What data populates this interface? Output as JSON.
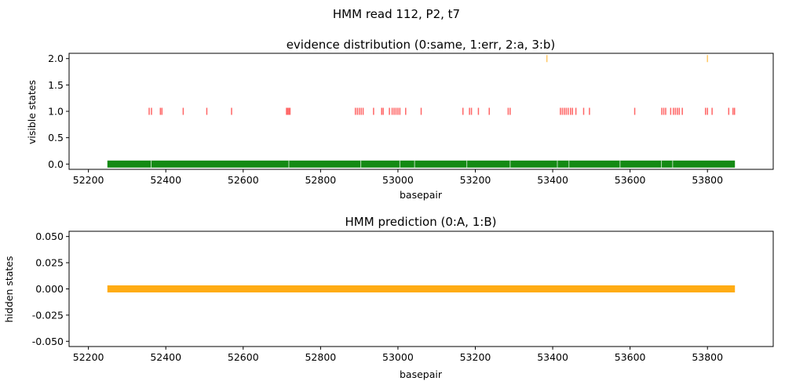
{
  "suptitle": "HMM read 112, P2, t7",
  "chart_data": [
    {
      "type": "scatter",
      "title": "evidence distribution (0:same, 1:err, 2:a, 3:b)",
      "xlabel": "basepair",
      "ylabel": "visible states",
      "xlim": [
        52150,
        53970
      ],
      "ylim": [
        -0.1,
        2.1
      ],
      "xticks": [
        52200,
        52400,
        52600,
        52800,
        53000,
        53200,
        53400,
        53600,
        53800
      ],
      "yticks": [
        "0.0",
        "0.5",
        "1.0",
        "1.5",
        "2.0"
      ],
      "ytick_values": [
        0.0,
        0.5,
        1.0,
        1.5,
        2.0
      ],
      "grid": false,
      "marker": "|",
      "series": [
        {
          "y": 0,
          "color": "#008000",
          "ranges": [
            [
              52250,
              53870
            ]
          ],
          "gaps": [
            52362,
            52718,
            52904,
            53005,
            53043,
            53178,
            53290,
            53412,
            53442,
            53574,
            53681,
            53710
          ]
        },
        {
          "y": 1,
          "color": "#ff0000",
          "x": [
            52357,
            52363,
            52386,
            52390,
            52445,
            52506,
            52570,
            52712,
            52715,
            52718,
            52721,
            52890,
            52895,
            52900,
            52905,
            52910,
            52937,
            52958,
            52962,
            52978,
            52985,
            52990,
            52995,
            53000,
            53005,
            53020,
            53060,
            53168,
            53185,
            53190,
            53208,
            53236,
            53285,
            53290,
            53420,
            53425,
            53430,
            53435,
            53440,
            53446,
            53451,
            53460,
            53480,
            53495,
            53612,
            53682,
            53687,
            53692,
            53705,
            53712,
            53717,
            53722,
            53727,
            53735,
            53795,
            53800,
            53812,
            53855,
            53866,
            53870
          ]
        },
        {
          "y": 2,
          "color": "#ffa500",
          "x": [
            53385,
            53800
          ]
        }
      ]
    },
    {
      "type": "scatter",
      "title": "HMM prediction (0:A, 1:B)",
      "xlabel": "basepair",
      "ylabel": "hidden states",
      "xlim": [
        52150,
        53970
      ],
      "ylim": [
        -0.055,
        0.055
      ],
      "xticks": [
        52200,
        52400,
        52600,
        52800,
        53000,
        53200,
        53400,
        53600,
        53800
      ],
      "yticks": [
        "-0.050",
        "-0.025",
        "0.000",
        "0.025",
        "0.050"
      ],
      "ytick_values": [
        -0.05,
        -0.025,
        0.0,
        0.025,
        0.05
      ],
      "grid": false,
      "marker": "|",
      "series": [
        {
          "y": 0,
          "color": "#ffa500",
          "ranges": [
            [
              52250,
              53870
            ]
          ]
        }
      ]
    }
  ]
}
